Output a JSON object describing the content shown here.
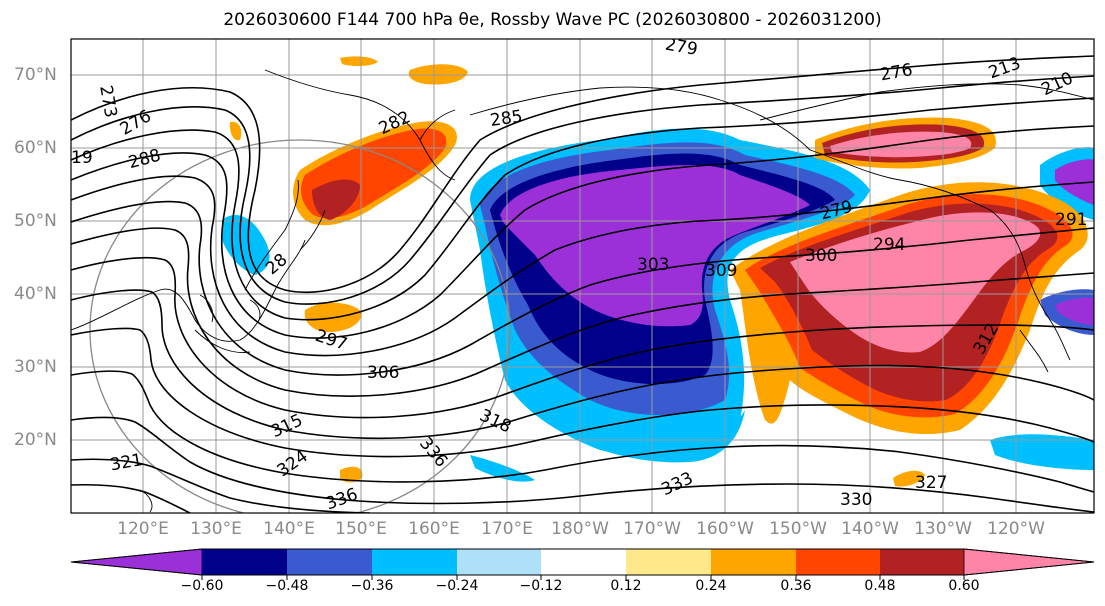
{
  "title": "2026030600 F144 700 hPa θe, Rossby Wave PC (2026030800 - 2026031200)",
  "lat_labels": [
    "70°N",
    "60°N",
    "50°N",
    "40°N",
    "30°N",
    "20°N"
  ],
  "lon_labels": [
    "120°E",
    "130°E",
    "140°E",
    "150°E",
    "160°E",
    "170°E",
    "180°W",
    "170°W",
    "160°W",
    "150°W",
    "140°W",
    "130°W",
    "120°W"
  ],
  "colorbar": {
    "ticks": [
      "−0.60",
      "−0.48",
      "−0.36",
      "−0.24",
      "−0.12",
      "0.12",
      "0.24",
      "0.36",
      "0.48",
      "0.60"
    ],
    "colors": [
      "#9b30d9",
      "#00008b",
      "#3a5bcf",
      "#00bfff",
      "#afe0fa",
      "#ffffff",
      "#ffe98a",
      "#ffa500",
      "#ff4500",
      "#b22222",
      "#ff85a8"
    ]
  },
  "contour_labels": [
    "273",
    "276",
    "279",
    "282",
    "285",
    "288",
    "291",
    "294",
    "297",
    "300",
    "303",
    "306",
    "309",
    "312",
    "315",
    "318",
    "321",
    "324",
    "327",
    "330",
    "333",
    "336",
    "213",
    "210",
    "19",
    "28"
  ],
  "icons": [
    "coastline",
    "graticule",
    "contour-lines"
  ]
}
